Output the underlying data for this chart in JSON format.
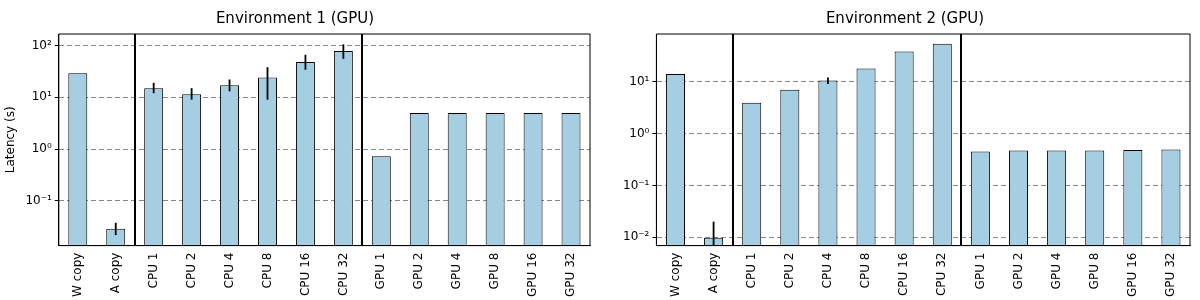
{
  "chart_data": [
    {
      "type": "bar",
      "title": "Environment 1 (GPU)",
      "ylabel": "Latency (s)",
      "categories": [
        "W copy",
        "A copy",
        "CPU 1",
        "CPU 2",
        "CPU 4",
        "CPU 8",
        "CPU 16",
        "CPU 32",
        "GPU 1",
        "GPU 2",
        "GPU 4",
        "GPU 8",
        "GPU 16",
        "GPU 32"
      ],
      "series": [
        {
          "color": "#a6cee3",
          "values": [
            29,
            0.029,
            15,
            11.5,
            17,
            24,
            48,
            78,
            0.73,
            5,
            5,
            5,
            5,
            5
          ],
          "errors": [
            null,
            [
              0.022,
              0.038
            ],
            [
              12,
              19
            ],
            [
              9,
              15
            ],
            [
              13,
              22
            ],
            [
              9,
              38
            ],
            [
              34,
              66
            ],
            [
              55,
              105
            ],
            null,
            null,
            null,
            null,
            null,
            null
          ]
        }
      ],
      "log": "y",
      "ylim": [
        0.0138,
        166
      ],
      "yticks": [
        {
          "value": 0.1,
          "label": "10⁻¹"
        },
        {
          "value": 1,
          "label": "10⁰"
        },
        {
          "value": 10,
          "label": "10¹"
        },
        {
          "value": 100,
          "label": "10²"
        }
      ],
      "grid": "y",
      "legend": false
    },
    {
      "type": "bar",
      "title": "Environment 2 (GPU)",
      "categories": [
        "W copy",
        "A copy",
        "CPU 1",
        "CPU 2",
        "CPU 4",
        "CPU 8",
        "CPU 16",
        "CPU 32",
        "GPU 1",
        "GPU 2",
        "GPU 4",
        "GPU 8",
        "GPU 16",
        "GPU 32"
      ],
      "series": [
        {
          "color": "#a6cee3",
          "values": [
            14,
            0.0098,
            3.9,
            7,
            10.5,
            18,
            38,
            54,
            0.45,
            0.47,
            0.47,
            0.47,
            0.48,
            0.49
          ],
          "errors": [
            null,
            [
              0.007,
              0.02
            ],
            null,
            null,
            [
              9,
              12
            ],
            null,
            null,
            null,
            null,
            null,
            null,
            null,
            null,
            null
          ]
        }
      ],
      "log": "y",
      "ylim": [
        0.0069,
        83
      ],
      "yticks": [
        {
          "value": 0.01,
          "label": "10⁻²"
        },
        {
          "value": 0.1,
          "label": "10⁻¹"
        },
        {
          "value": 1,
          "label": "10⁰"
        },
        {
          "value": 10,
          "label": "10¹"
        }
      ],
      "grid": "y",
      "legend": false
    }
  ]
}
